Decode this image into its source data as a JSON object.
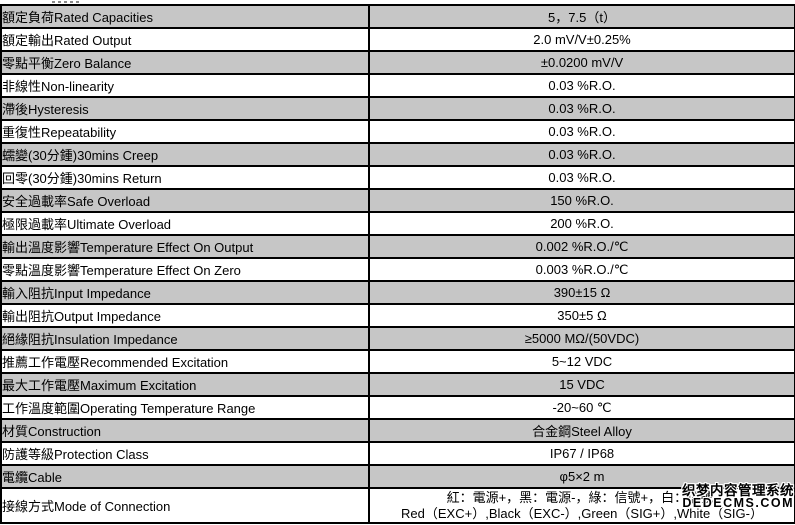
{
  "colors": {
    "shaded_row": "#c6c6c6",
    "plain_row": "#ffffff",
    "border": "#000000",
    "text": "#000000"
  },
  "table": {
    "rows": [
      {
        "label": "額定負荷Rated Capacities",
        "value": "5，7.5（t）"
      },
      {
        "label": "額定輸出Rated Output",
        "value": "2.0 mV/V±0.25%"
      },
      {
        "label": "零點平衡Zero Balance",
        "value": "±0.0200 mV/V"
      },
      {
        "label": "非線性Non-linearity",
        "value": "0.03 %R.O."
      },
      {
        "label": "滯後Hysteresis",
        "value": "0.03 %R.O."
      },
      {
        "label": "重復性Repeatability",
        "value": "0.03 %R.O."
      },
      {
        "label": "蠕變(30分鍾)30mins Creep",
        "value": "0.03 %R.O."
      },
      {
        "label": "回零(30分鍾)30mins Return",
        "value": "0.03 %R.O."
      },
      {
        "label": "安全過載率Safe Overload",
        "value": "150 %R.O."
      },
      {
        "label": "極限過載率Ultimate Overload",
        "value": "200 %R.O."
      },
      {
        "label": "輸出溫度影響Temperature Effect On Output",
        "value": "0.002 %R.O./℃"
      },
      {
        "label": "零點溫度影響Temperature Effect On Zero",
        "value": "0.003 %R.O./℃"
      },
      {
        "label": "輸入阻抗Input Impedance",
        "value": "390±15 Ω"
      },
      {
        "label": "輸出阻抗Output Impedance",
        "value": "350±5 Ω"
      },
      {
        "label": "絕緣阻抗Insulation Impedance",
        "value": "≥5000 MΩ/(50VDC)"
      },
      {
        "label": "推薦工作電壓Recommended Excitation",
        "value": "5~12 VDC"
      },
      {
        "label": "最大工作電壓Maximum Excitation",
        "value": "15 VDC"
      },
      {
        "label": "工作溫度範圍Operating Temperature Range",
        "value": "-20~60 ℃"
      },
      {
        "label": "材質Construction",
        "value": "合金鋼Steel Alloy"
      },
      {
        "label": "防護等級Protection Class",
        "value": "IP67 / IP68"
      },
      {
        "label": "電纜Cable",
        "value": "φ5×2 m"
      },
      {
        "label": "接線方式Mode of Connection",
        "value": [
          "紅：電源+，黑：電源-，綠：信號+，白：信號-",
          "Red（EXC+）,Black（EXC-）,Green（SIG+）,White（SIG-）"
        ]
      }
    ]
  },
  "watermark": {
    "line1": "织梦内容管理系统",
    "line2": "DEDECMS.COM"
  }
}
